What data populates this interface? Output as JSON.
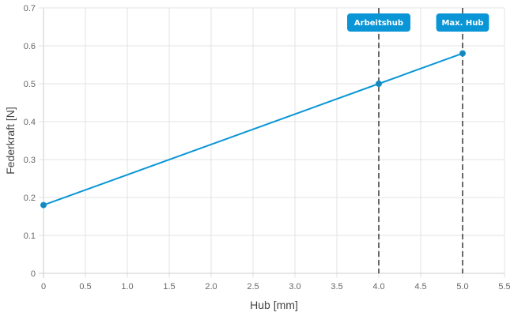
{
  "chart_data": {
    "type": "line",
    "title": "",
    "xlabel": "Hub [mm]",
    "ylabel": "Federkraft [N]",
    "xlim": [
      0,
      5.5
    ],
    "ylim": [
      0,
      0.7
    ],
    "xticks": [
      "0",
      "0.5",
      "1.0",
      "1.5",
      "2.0",
      "2.5",
      "3.0",
      "3.5",
      "4.0",
      "4.5",
      "5.0",
      "5.5"
    ],
    "yticks": [
      "0",
      "0.1",
      "0.2",
      "0.3",
      "0.4",
      "0.5",
      "0.6",
      "0.7"
    ],
    "grid": true,
    "series": [
      {
        "x": [
          0,
          4,
          5
        ],
        "y": [
          0.18,
          0.5,
          0.58
        ],
        "color": "#0a96d6"
      }
    ],
    "annotations": [
      {
        "x": 4,
        "label": "Arbeitshub",
        "line_style": "dashed"
      },
      {
        "x": 5,
        "label": "Max. Hub",
        "line_style": "dashed"
      }
    ],
    "colors": {
      "line": "#0a96d6",
      "marker": "#1b84b8",
      "annotation_bg": "#0a96d6",
      "annotation_line": "#444444",
      "grid": "#e3e3e3"
    }
  }
}
